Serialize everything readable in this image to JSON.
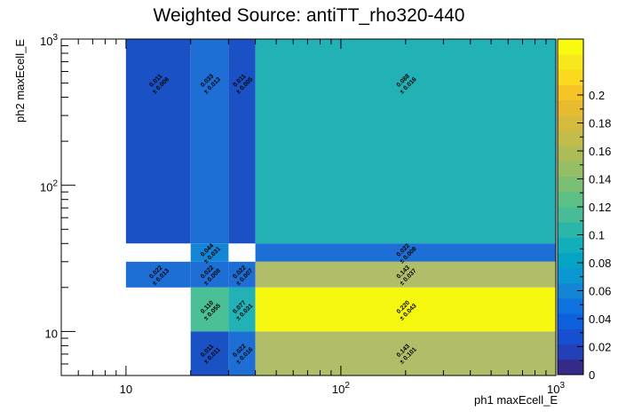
{
  "chart_data": {
    "type": "heatmap",
    "title": "Weighted Source: antiTT_rho320-440",
    "xlabel": "ph1 maxEcell_E",
    "ylabel": "ph2 maxEcell_E",
    "xscale": "log",
    "yscale": "log",
    "xlim": [
      5,
      1000
    ],
    "ylim": [
      5,
      1000
    ],
    "x_ticks": [
      {
        "value": 10,
        "base": "10",
        "exp": ""
      },
      {
        "value": 100,
        "base": "10",
        "exp": "2"
      },
      {
        "value": 1000,
        "base": "10",
        "exp": "3"
      }
    ],
    "y_ticks": [
      {
        "value": 10,
        "base": "10",
        "exp": ""
      },
      {
        "value": 100,
        "base": "10",
        "exp": "2"
      },
      {
        "value": 1000,
        "base": "10",
        "exp": "3"
      }
    ],
    "zlim": [
      0,
      0.24
    ],
    "colorbar_ticks": [
      "0",
      "0.02",
      "0.04",
      "0.06",
      "0.08",
      "0.1",
      "0.12",
      "0.14",
      "0.16",
      "0.18",
      "0.2"
    ],
    "cells": [
      {
        "x0": 10,
        "x1": 20,
        "y0": 40,
        "y1": 1000,
        "value": 0.011,
        "value_label": "0.011",
        "error_label": "± 0.006",
        "label_y": 500
      },
      {
        "x0": 20,
        "x1": 30,
        "y0": 40,
        "y1": 1000,
        "value": 0.033,
        "value_label": "0.033",
        "error_label": "± 0.013",
        "label_y": 500
      },
      {
        "x0": 30,
        "x1": 40,
        "y0": 40,
        "y1": 1000,
        "value": 0.011,
        "value_label": "0.011",
        "error_label": "± 0.005",
        "label_y": 500
      },
      {
        "x0": 40,
        "x1": 1000,
        "y0": 40,
        "y1": 1000,
        "value": 0.088,
        "value_label": "0.088",
        "error_label": "± 0.016",
        "label_y": 500
      },
      {
        "x0": 20,
        "x1": 30,
        "y0": 30,
        "y1": 40,
        "value": 0.044,
        "value_label": "0.044",
        "error_label": "± 0.031",
        "label_y": 34.6
      },
      {
        "x0": 40,
        "x1": 1000,
        "y0": 30,
        "y1": 40,
        "value": 0.022,
        "value_label": "0.022",
        "error_label": "± 0.008",
        "label_y": 34.6
      },
      {
        "x0": 10,
        "x1": 20,
        "y0": 20,
        "y1": 30,
        "value": 0.022,
        "value_label": "0.022",
        "error_label": "± 0.013",
        "label_y": 24.5
      },
      {
        "x0": 20,
        "x1": 30,
        "y0": 20,
        "y1": 30,
        "value": 0.022,
        "value_label": "0.022",
        "error_label": "± 0.008",
        "label_y": 24.5
      },
      {
        "x0": 30,
        "x1": 40,
        "y0": 20,
        "y1": 30,
        "value": 0.022,
        "value_label": "0.022",
        "error_label": "± 0.007",
        "label_y": 24.5
      },
      {
        "x0": 40,
        "x1": 1000,
        "y0": 20,
        "y1": 30,
        "value": 0.143,
        "value_label": "0.143",
        "error_label": "± 0.037",
        "label_y": 24.5
      },
      {
        "x0": 20,
        "x1": 30,
        "y0": 10,
        "y1": 20,
        "value": 0.11,
        "value_label": "0.110",
        "error_label": "± 0.055",
        "label_y": 14.1
      },
      {
        "x0": 30,
        "x1": 40,
        "y0": 10,
        "y1": 20,
        "value": 0.077,
        "value_label": "0.077",
        "error_label": "± 0.031",
        "label_y": 14.1
      },
      {
        "x0": 40,
        "x1": 1000,
        "y0": 10,
        "y1": 20,
        "value": 0.22,
        "value_label": "0.220",
        "error_label": "± 0.043",
        "label_y": 14.1
      },
      {
        "x0": 20,
        "x1": 30,
        "y0": 5,
        "y1": 10,
        "value": 0.011,
        "value_label": "0.011",
        "error_label": "± 0.011",
        "label_y": 7.1
      },
      {
        "x0": 30,
        "x1": 40,
        "y0": 5,
        "y1": 10,
        "value": 0.022,
        "value_label": "0.022",
        "error_label": "± 0.016",
        "label_y": 7.1
      },
      {
        "x0": 40,
        "x1": 1000,
        "y0": 5,
        "y1": 10,
        "value": 0.143,
        "value_label": "0.143",
        "error_label": "± 0.101",
        "label_y": 7.1
      }
    ],
    "cell_colors": [
      {
        "max": 0.015,
        "color": "#1a52c6"
      },
      {
        "max": 0.04,
        "color": "#1d6fd6"
      },
      {
        "max": 0.05,
        "color": "#1486d8"
      },
      {
        "max": 0.09,
        "color": "#22b2b6"
      },
      {
        "max": 0.12,
        "color": "#4bbf96"
      },
      {
        "max": 0.18,
        "color": "#b1bd69"
      },
      {
        "max": 1.0,
        "color": "#f6f70e"
      }
    ],
    "colorbar_colors": [
      "#352a87",
      "#2340b8",
      "#1650d0",
      "#0f60dc",
      "#0e72df",
      "#1485d4",
      "#0b97cf",
      "#06a4c4",
      "#12aebc",
      "#2bb6aa",
      "#46bd97",
      "#5cc085",
      "#7bbf74",
      "#96be65",
      "#adbc58",
      "#c3bb4a",
      "#d6ba3c",
      "#e7bb30",
      "#f6c427",
      "#fbd91e",
      "#f6e81a",
      "#f9fb0e"
    ]
  }
}
